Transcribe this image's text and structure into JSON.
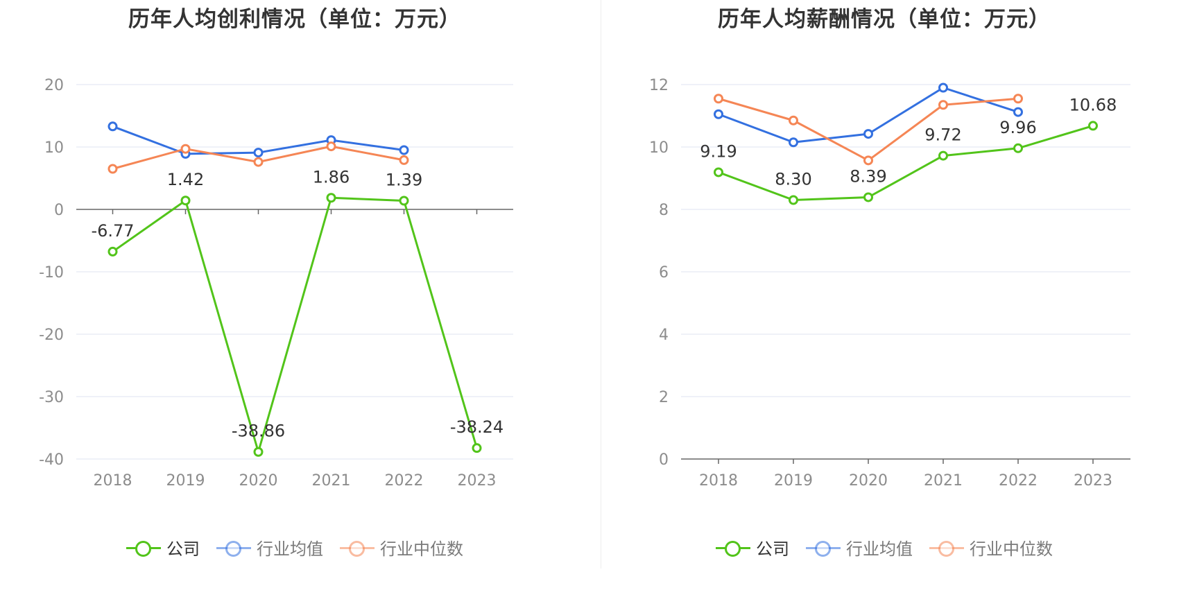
{
  "colors": {
    "company": "#52c41a",
    "industry_avg": "#3370e0",
    "industry_median": "#f58655",
    "grid": "#dfe3f0",
    "axis": "#666666",
    "tick_text": "#8c8c8c",
    "label_text": "#333333"
  },
  "legend": [
    {
      "name": "公司",
      "key": "company",
      "icon": "circle-line-icon"
    },
    {
      "name": "行业均值",
      "key": "industry_avg",
      "icon": "circle-line-icon"
    },
    {
      "name": "行业中位数",
      "key": "industry_median",
      "icon": "circle-line-icon"
    }
  ],
  "chart_data": [
    {
      "type": "line",
      "title": "历年人均创利情况（单位：万元）",
      "categories": [
        "2018",
        "2019",
        "2020",
        "2021",
        "2022",
        "2023"
      ],
      "ylim": [
        -40,
        20
      ],
      "yticks": [
        20,
        10,
        0,
        -10,
        -20,
        -30,
        -40
      ],
      "grid": true,
      "legend_position": "bottom",
      "series": [
        {
          "name": "公司",
          "key": "company",
          "values": [
            -6.77,
            1.42,
            -38.86,
            1.86,
            1.39,
            -38.24
          ],
          "labels": [
            "-6.77",
            "1.42",
            "-38.86",
            "1.86",
            "1.39",
            "-38.24"
          ]
        },
        {
          "name": "行业均值",
          "key": "industry_avg",
          "values": [
            13.3,
            8.9,
            9.1,
            11.1,
            9.5,
            null
          ]
        },
        {
          "name": "行业中位数",
          "key": "industry_median",
          "values": [
            6.5,
            9.7,
            7.6,
            10.1,
            7.9,
            null
          ]
        }
      ]
    },
    {
      "type": "line",
      "title": "历年人均薪酬情况（单位：万元）",
      "categories": [
        "2018",
        "2019",
        "2020",
        "2021",
        "2022",
        "2023"
      ],
      "ylim": [
        0,
        12
      ],
      "yticks": [
        12,
        10,
        8,
        6,
        4,
        2,
        0
      ],
      "grid": true,
      "legend_position": "bottom",
      "series": [
        {
          "name": "公司",
          "key": "company",
          "values": [
            9.19,
            8.3,
            8.39,
            9.72,
            9.96,
            10.68
          ],
          "labels": [
            "9.19",
            "8.30",
            "8.39",
            "9.72",
            "9.96",
            "10.68"
          ]
        },
        {
          "name": "行业均值",
          "key": "industry_avg",
          "values": [
            11.05,
            10.15,
            10.42,
            11.9,
            11.12,
            null
          ]
        },
        {
          "name": "行业中位数",
          "key": "industry_median",
          "values": [
            11.55,
            10.85,
            9.57,
            11.35,
            11.55,
            null
          ]
        }
      ]
    }
  ]
}
